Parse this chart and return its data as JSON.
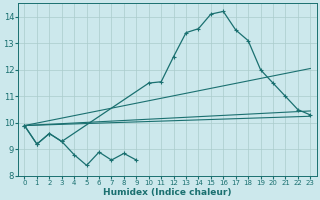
{
  "xlabel": "Humidex (Indice chaleur)",
  "xlim": [
    -0.5,
    23.5
  ],
  "ylim": [
    8,
    14.5
  ],
  "yticks": [
    8,
    9,
    10,
    11,
    12,
    13,
    14
  ],
  "xticks": [
    0,
    1,
    2,
    3,
    4,
    5,
    6,
    7,
    8,
    9,
    10,
    11,
    12,
    13,
    14,
    15,
    16,
    17,
    18,
    19,
    20,
    21,
    22,
    23
  ],
  "background_color": "#cce8ec",
  "grid_color": "#aacccc",
  "line_color": "#1a7070",
  "zigzag_x": [
    0,
    1,
    2,
    3,
    4,
    5,
    6,
    7,
    8,
    9
  ],
  "zigzag_y": [
    9.9,
    9.2,
    9.6,
    9.3,
    8.8,
    8.4,
    8.9,
    8.6,
    8.85,
    8.6
  ],
  "main_curve_x": [
    0,
    1,
    2,
    3,
    10,
    11,
    12,
    13,
    14,
    15,
    16,
    17,
    18,
    19,
    20,
    21,
    22,
    23
  ],
  "main_curve_y": [
    9.9,
    9.2,
    9.6,
    9.3,
    11.5,
    11.55,
    12.5,
    13.4,
    13.55,
    14.1,
    14.2,
    13.5,
    13.1,
    12.0,
    11.5,
    11.0,
    10.5,
    10.3
  ],
  "trend1_x": [
    0,
    23
  ],
  "trend1_y": [
    9.9,
    10.25
  ],
  "trend2_x": [
    0,
    23
  ],
  "trend2_y": [
    9.9,
    10.45
  ],
  "trend3_x": [
    0,
    23
  ],
  "trend3_y": [
    9.9,
    12.05
  ]
}
